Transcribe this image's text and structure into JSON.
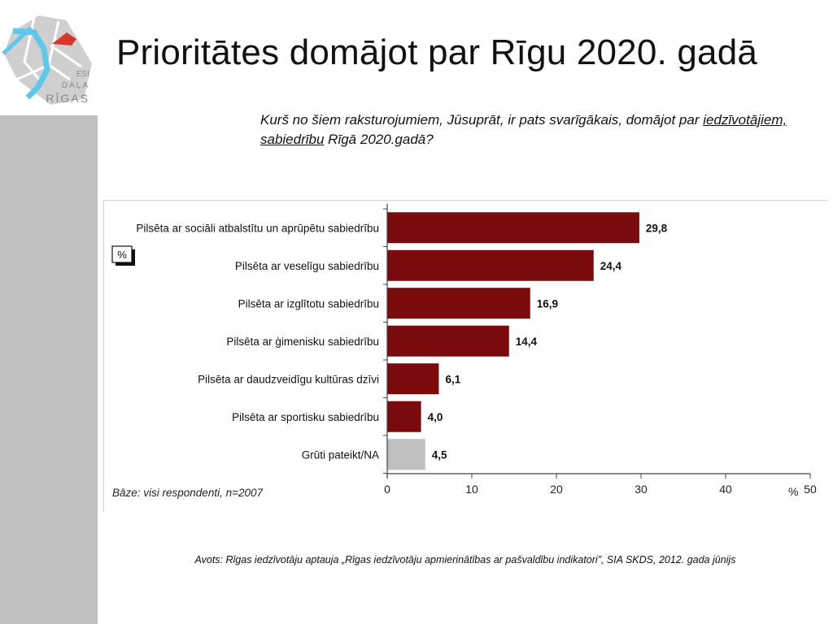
{
  "slide": {
    "title": "Prioritātes domājot par Rīgu 2020. gadā",
    "question_part1": "Kurš no šiem raksturojumiem, Jūsuprāt, ir pats svarīgākais, domājot par ",
    "question_underlined": "iedzīvotājiem, sabiedrību",
    "question_part2": " Rīgā 2020.gadā?",
    "source": "Avots: Rīgas iedzīvotāju aptauja „Rīgas iedzīvotāju apmierinātības ar pašvaldību indikatori”, SIA SKDS, 2012. gada jūnijs"
  },
  "logo": {
    "line1": "ESI",
    "line2": "DAĻA",
    "line3": "RĪGAS"
  },
  "colors": {
    "bar": "#7b0a0c",
    "bar_na": "#c0c0c0",
    "side_panel": "#c0c0c0",
    "logo_river": "#5bc8ec",
    "logo_accent": "#d8382a"
  },
  "chart_data": {
    "type": "bar",
    "orientation": "horizontal",
    "categories": [
      "Pilsēta ar sociāli atbalstītu un aprūpētu sabiedrību",
      "Pilsēta ar veselīgu sabiedrību",
      "Pilsēta ar izglītotu sabiedrību",
      "Pilsēta ar ģimenisku sabiedrību",
      "Pilsēta ar daudzveidīgu kultūras dzīvi",
      "Pilsēta ar sportisku sabiedrību",
      "Grūti pateikt/NA"
    ],
    "values": [
      29.8,
      24.4,
      16.9,
      14.4,
      6.1,
      4.0,
      4.5
    ],
    "value_labels": [
      "29,8",
      "24,4",
      "16,9",
      "14,4",
      "6,1",
      "4,0",
      "4,5"
    ],
    "xlim": [
      0,
      50
    ],
    "xticks": [
      "0",
      "10",
      "20",
      "30",
      "40",
      "50"
    ],
    "xlabel": "%",
    "unit_box": "%",
    "base_note": "Bāze: visi respondenti, n=2007",
    "grid": false
  }
}
